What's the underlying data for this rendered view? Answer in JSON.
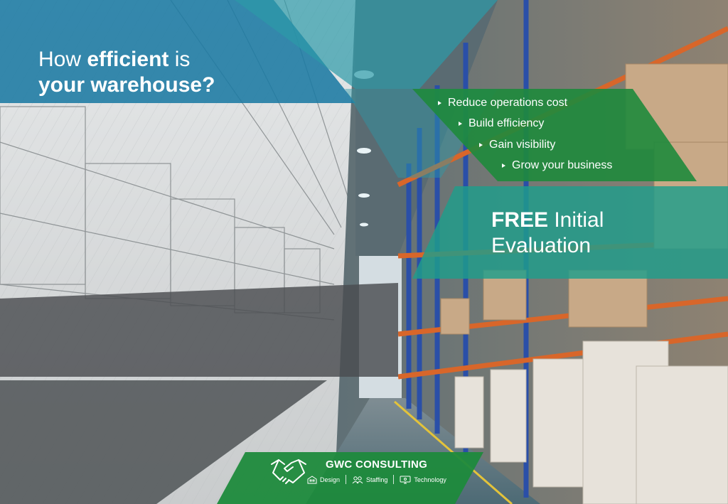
{
  "headline": {
    "line1_prefix": "How ",
    "line1_bold": "efficient",
    "line1_suffix": " is",
    "line2_bold": "your warehouse?"
  },
  "benefits": [
    {
      "label": "Reduce operations cost"
    },
    {
      "label": "Build efficiency"
    },
    {
      "label": "Gain visibility"
    },
    {
      "label": "Grow your business"
    }
  ],
  "offer": {
    "bold": "FREE",
    "rest_line1": " Initial",
    "line2": "Evaluation"
  },
  "brand": {
    "name": "GWC CONSULTING",
    "services": [
      {
        "label": "Design",
        "icon": "building-icon"
      },
      {
        "label": "Staffing",
        "icon": "people-icon"
      },
      {
        "label": "Technology",
        "icon": "monitor-icon"
      }
    ],
    "logo_icon": "handshake-icon"
  },
  "colors": {
    "blue": "#1b7aa3",
    "teal": "#2c9aa8",
    "green": "#1e8a3c",
    "dark_gray": "#4a4d50",
    "rack_orange": "#d8662a",
    "rack_blue": "#2a4fa8"
  }
}
